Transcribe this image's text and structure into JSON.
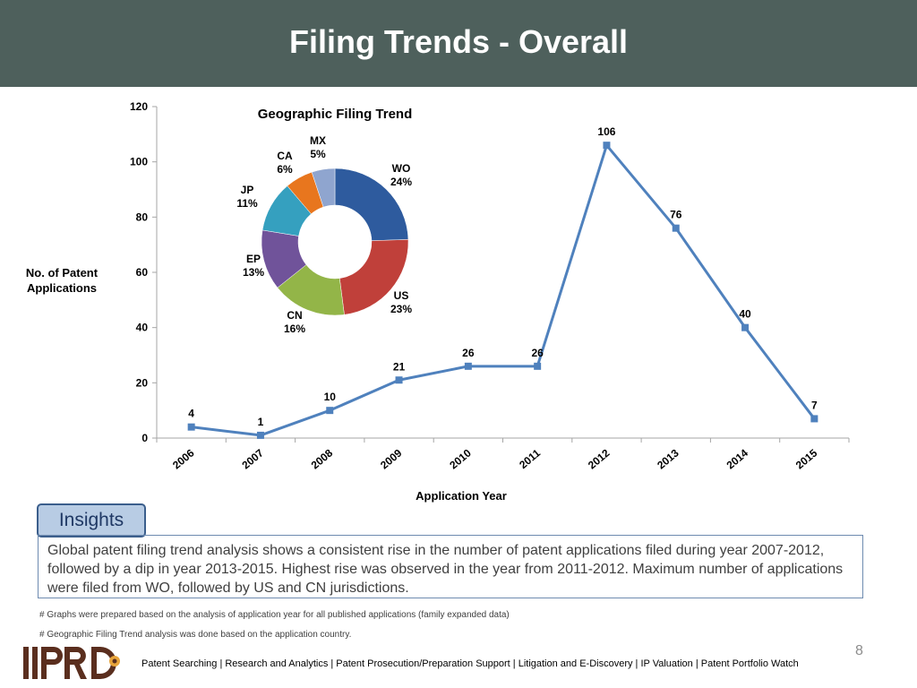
{
  "header": {
    "title": "Filing Trends - Overall"
  },
  "chart_data": [
    {
      "type": "line",
      "title": "",
      "xlabel": "Application Year",
      "ylabel": "No. of  Patent Applications",
      "x": [
        "2006",
        "2007",
        "2008",
        "2009",
        "2010",
        "2011",
        "2012",
        "2013",
        "2014",
        "2015"
      ],
      "series": [
        {
          "values": [
            4,
            1,
            10,
            21,
            26,
            26,
            106,
            76,
            40,
            7
          ]
        }
      ],
      "ylim": [
        0,
        120
      ],
      "yticks": [
        0,
        20,
        40,
        60,
        80,
        100,
        120
      ],
      "grid": false,
      "data_labels": true,
      "color": "#4f81bd"
    },
    {
      "type": "pie",
      "title": "Geographic Filing Trend",
      "donut": true,
      "slices": [
        {
          "label": "WO",
          "value": 24,
          "display": "24%",
          "color": "#2e5b9e"
        },
        {
          "label": "US",
          "value": 23,
          "display": "23%",
          "color": "#c0403a"
        },
        {
          "label": "CN",
          "value": 16,
          "display": "16%",
          "color": "#93b548"
        },
        {
          "label": "EP",
          "value": 13,
          "display": "13%",
          "color": "#70539a"
        },
        {
          "label": "JP",
          "value": 11,
          "display": "11%",
          "color": "#35a0bf"
        },
        {
          "label": "CA",
          "value": 6,
          "display": "6%",
          "color": "#e8761e"
        },
        {
          "label": "MX",
          "value": 5,
          "display": "5%",
          "color": "#8fa5cf"
        }
      ]
    }
  ],
  "insights": {
    "tab_label": "Insights",
    "text": "Global patent filing trend analysis shows a consistent rise in the number of patent applications filed during year 2007-2012, followed by a dip in year 2013-2015. Highest rise was observed in the year from 2011-2012. Maximum number of  applications were filed from WO, followed by US  and CN jurisdictions."
  },
  "footnotes": [
    "# Graphs were prepared based on the analysis of application year for all published applications (family expanded data)",
    "# Geographic Filing Trend analysis was done based on the application country."
  ],
  "page_number": "8",
  "logo": {
    "text": "IIPRD"
  },
  "footer": "Patent Searching | Research and Analytics | Patent Prosecution/Preparation Support | Litigation and E-Discovery | IP Valuation |  Patent Portfolio Watch",
  "colors": {
    "header_bg": "#4e605c",
    "line": "#4f81bd",
    "insights_tab_bg": "#b8cce4",
    "logo_dark": "#5a2e1e",
    "logo_accent": "#e8a43a"
  }
}
